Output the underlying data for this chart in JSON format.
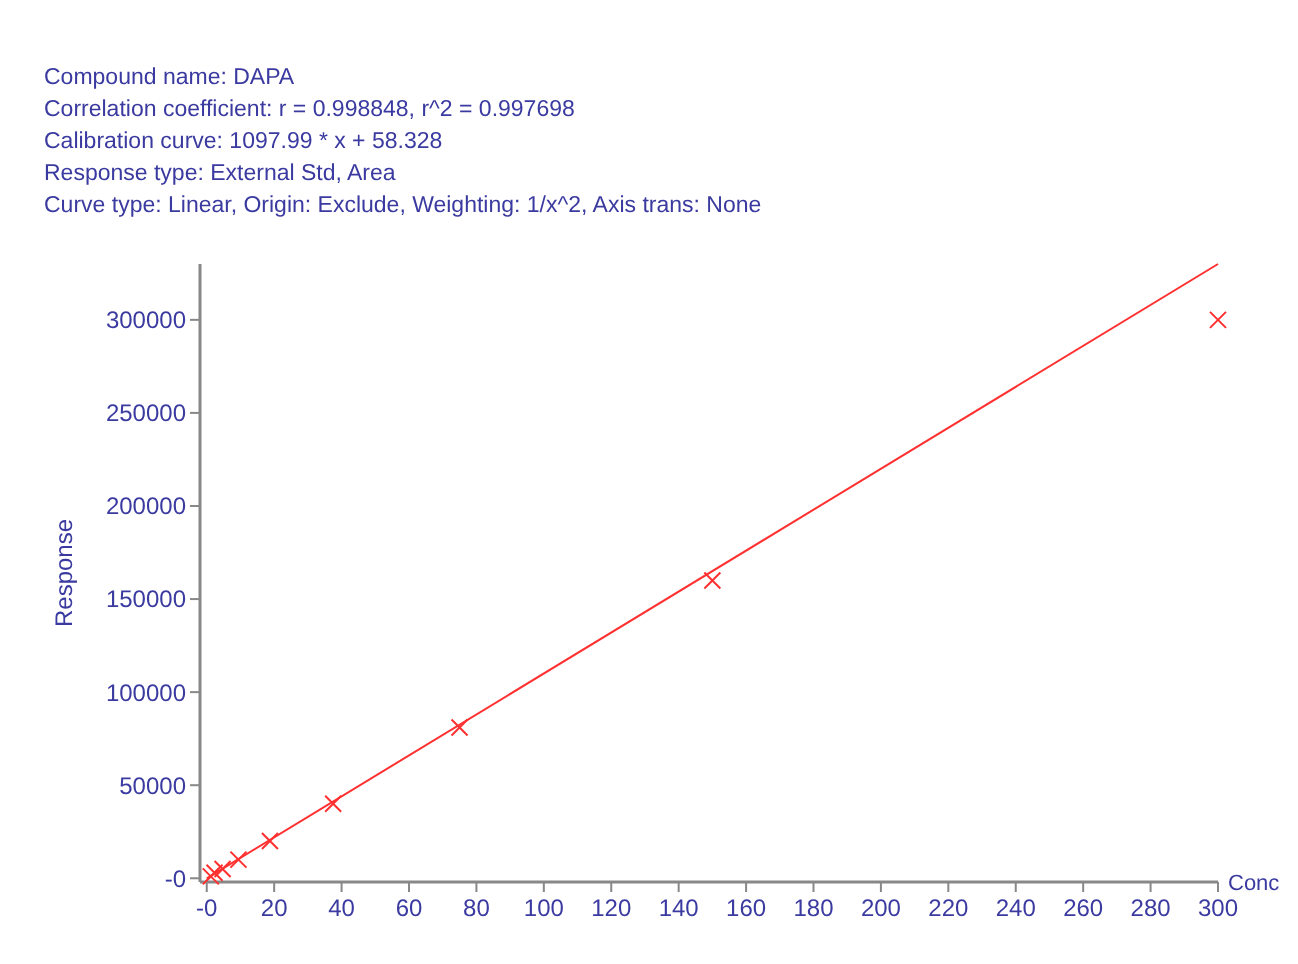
{
  "chart_data": {
    "type": "scatter",
    "xlabel": "Conc",
    "ylabel": "Response",
    "annotations": [
      "Compound name: DAPA",
      "Correlation coefficient: r = 0.998848, r^2 = 0.997698",
      "Calibration curve: 1097.99 * x + 58.328",
      "Response type: External Std, Area",
      "Curve type: Linear, Origin: Exclude, Weighting: 1/x^2, Axis trans: None"
    ],
    "xlim": [
      -2,
      300
    ],
    "ylim": [
      -2000,
      330000
    ],
    "xticks": [
      {
        "value": 0,
        "label": "-0"
      },
      20,
      40,
      60,
      80,
      100,
      120,
      140,
      160,
      180,
      200,
      220,
      240,
      260,
      280,
      300
    ],
    "yticks": [
      {
        "value": 0,
        "label": "-0"
      },
      50000,
      100000,
      150000,
      200000,
      250000,
      300000
    ],
    "grid": false,
    "series": [
      {
        "type": "line",
        "color": "#ff3030",
        "x": [
          0,
          300
        ],
        "values": [
          0,
          330000
        ],
        "marker": "none",
        "line_style": "solid"
      },
      {
        "type": "scatter",
        "color": "#ff3030",
        "marker": "cross",
        "x": [
          1.2,
          2.3,
          4.7,
          9.4,
          18.75,
          37.5,
          75,
          150,
          300
        ],
        "values": [
          1000,
          3000,
          5000,
          10000,
          20000,
          40000,
          81000,
          160000,
          300000
        ]
      }
    ]
  }
}
